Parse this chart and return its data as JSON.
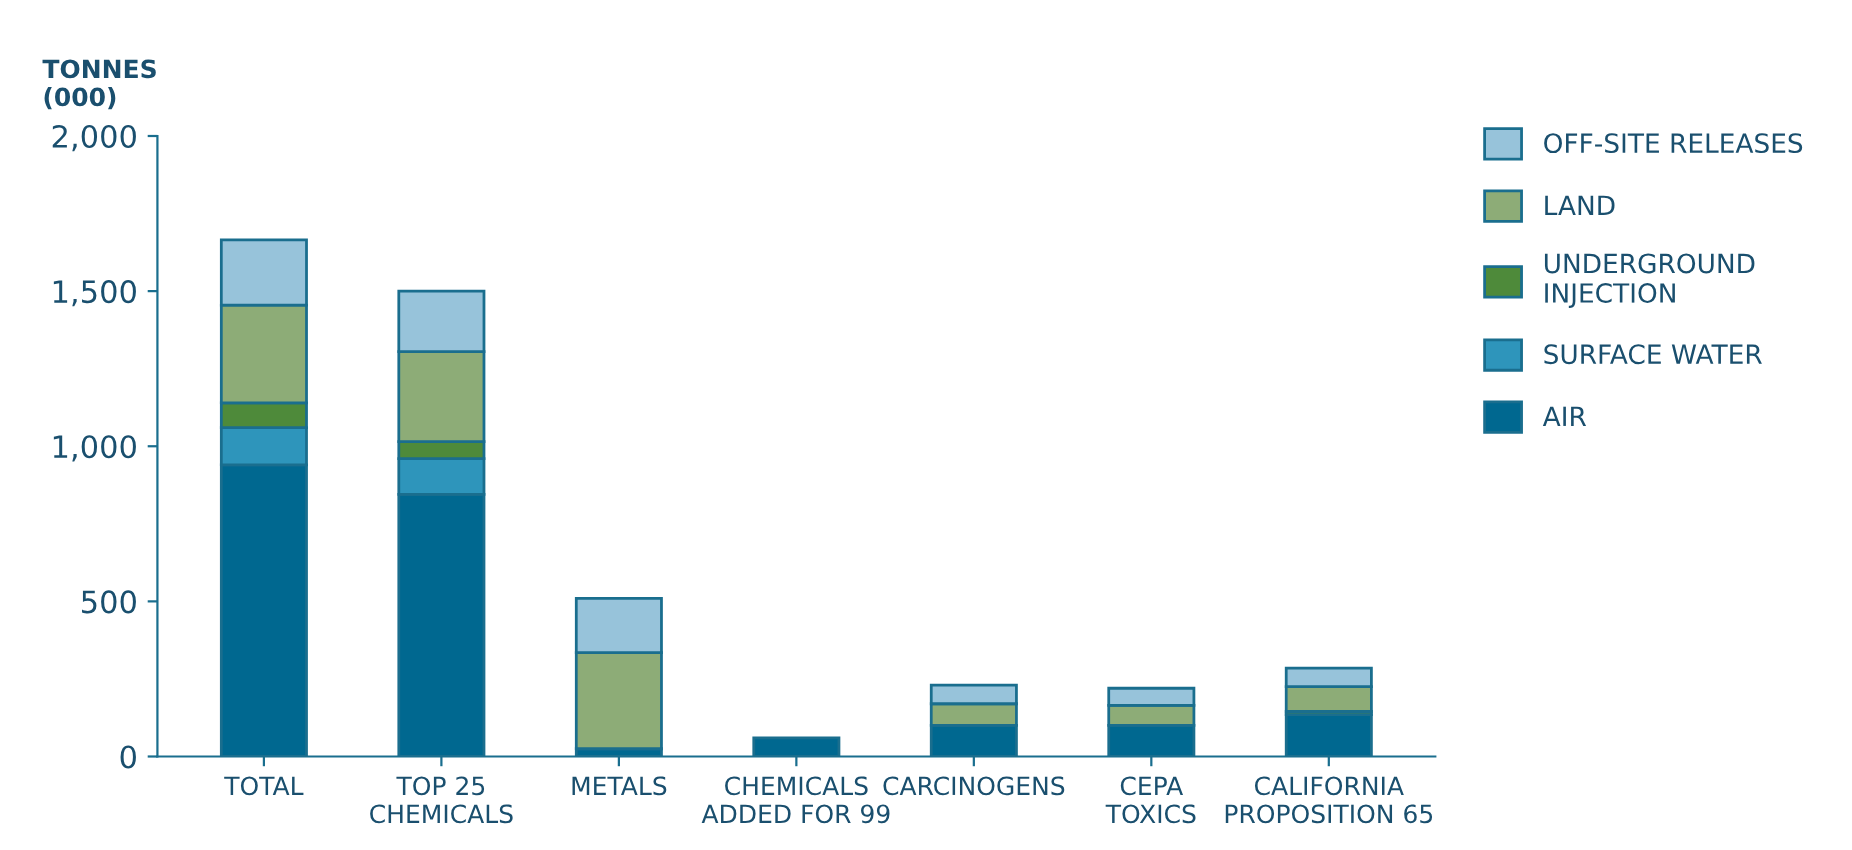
{
  "chart_data": {
    "type": "bar",
    "stacked": true,
    "ylabel": "TONNES\n(000)",
    "categories": [
      "TOTAL",
      "TOP 25\nCHEMICALS",
      "METALS",
      "CHEMICALS\nADDED FOR 99",
      "CARCINOGENS",
      "CEPA\nTOXICS",
      "CALIFORNIA\nPROPOSITION 65"
    ],
    "series": [
      {
        "name": "AIR",
        "color": "#006890",
        "values": [
          940,
          845,
          25,
          60,
          100,
          100,
          135
        ]
      },
      {
        "name": "SURFACE WATER",
        "color": "#2e95bb",
        "values": [
          120,
          115,
          0,
          0,
          null,
          0,
          0
        ]
      },
      {
        "name": "UNDERGROUND\nINJECTION",
        "color": "#4e8a3a",
        "values": [
          80,
          55,
          0,
          0,
          0,
          0,
          10
        ]
      },
      {
        "name": "LAND",
        "color": "#8dac77",
        "values": [
          315,
          290,
          310,
          0,
          70,
          65,
          80
        ]
      },
      {
        "name": "OFF-SITE RELEASES",
        "color": "#97c3da",
        "values": [
          210,
          195,
          175,
          0,
          60,
          55,
          60
        ]
      }
    ],
    "ylim": [
      0,
      2000
    ],
    "yticks": [
      0,
      500,
      {
        "value": 1000,
        "label": "1,000"
      },
      {
        "value": 1500,
        "label": "1,500"
      },
      {
        "value": 2000,
        "label": "2,000"
      }
    ],
    "grid": false,
    "legend": "right"
  }
}
